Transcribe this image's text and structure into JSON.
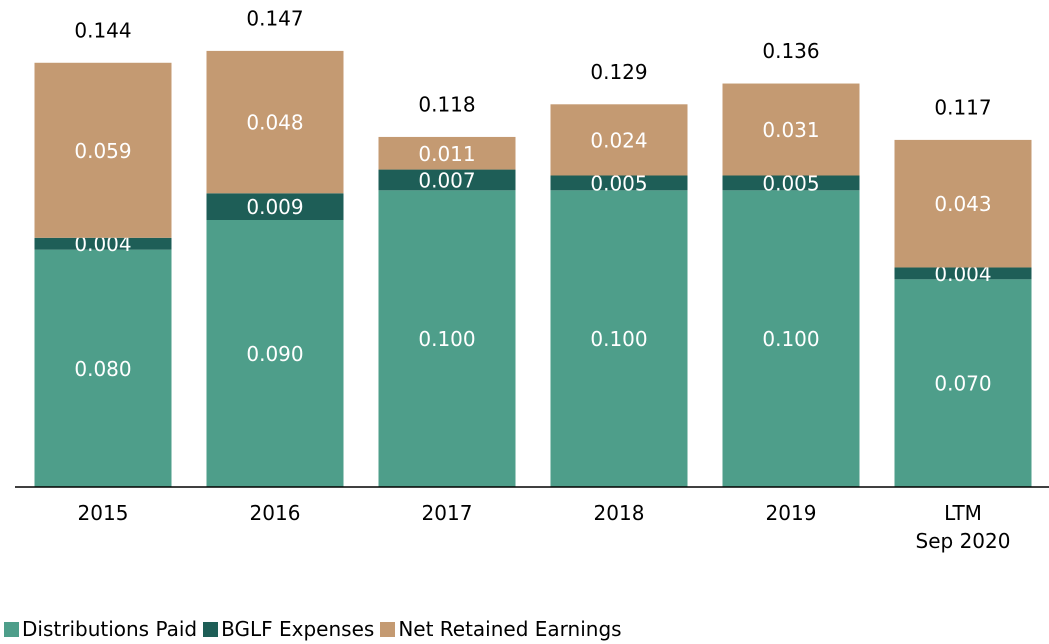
{
  "chart_data": {
    "type": "stacked_bar",
    "categories": [
      "2015",
      "2016",
      "2017",
      "2018",
      "2019",
      "LTM\nSep 2020"
    ],
    "series": [
      {
        "name": "Distributions Paid",
        "color": "#4e9e8a",
        "values": [
          0.08,
          0.09,
          0.1,
          0.1,
          0.1,
          0.07
        ],
        "value_labels": [
          "0.080",
          "0.090",
          "0.100",
          "0.100",
          "0.100",
          "0.070"
        ]
      },
      {
        "name": "BGLF Expenses",
        "color": "#1e5e57",
        "values": [
          0.004,
          0.009,
          0.007,
          0.005,
          0.005,
          0.004
        ],
        "value_labels": [
          "0.004",
          "0.009",
          "0.007",
          "0.005",
          "0.005",
          "0.004"
        ]
      },
      {
        "name": "Net Retained Earnings",
        "color": "#c49a72",
        "values": [
          0.059,
          0.048,
          0.011,
          0.024,
          0.031,
          0.043
        ],
        "value_labels": [
          "0.059",
          "0.048",
          "0.011",
          "0.024",
          "0.031",
          "0.043"
        ]
      }
    ],
    "totals": [
      0.144,
      0.147,
      0.118,
      0.129,
      0.136,
      0.117
    ],
    "ylim": [
      0,
      0.15
    ],
    "legend": "bottom-left"
  }
}
